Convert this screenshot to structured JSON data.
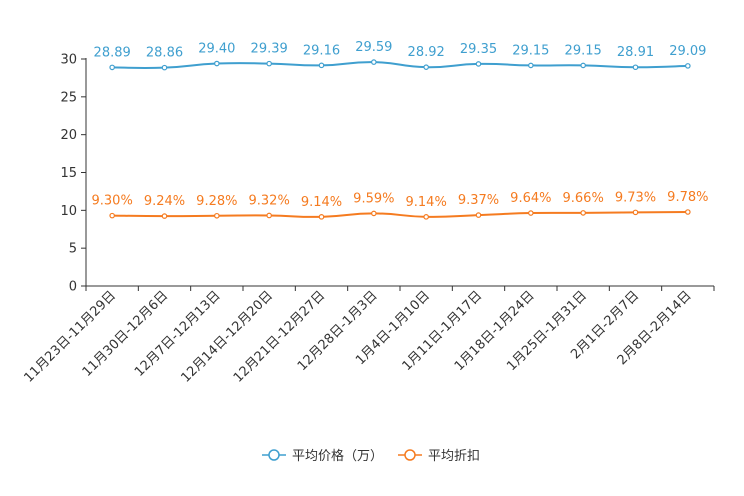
{
  "chart_data": {
    "type": "line",
    "title": "",
    "xlabel": "",
    "ylabel": "",
    "ylim": [
      0,
      30
    ],
    "yticks": [
      0,
      5,
      10,
      15,
      20,
      25,
      30
    ],
    "grid": false,
    "legend_position": "bottom-center",
    "categories": [
      "11月23日-11月29日",
      "11月30日-12月6日",
      "12月7日-12月13日",
      "12月14日-12月20日",
      "12月21日-12月27日",
      "12月28日-1月3日",
      "1月4日-1月10日",
      "1月11日-1月17日",
      "1月18日-1月24日",
      "1月25日-1月31日",
      "2月1日-2月7日",
      "2月8日-2月14日"
    ],
    "series": [
      {
        "name": "平均价格（万）",
        "color": "#3f9fcf",
        "values": [
          28.89,
          28.86,
          29.4,
          29.39,
          29.16,
          29.59,
          28.92,
          29.35,
          29.15,
          29.15,
          28.91,
          29.09
        ],
        "labels": [
          "28.89",
          "28.86",
          "29.40",
          "29.39",
          "29.16",
          "29.59",
          "28.92",
          "29.35",
          "29.15",
          "29.15",
          "28.91",
          "29.09"
        ]
      },
      {
        "name": "平均折扣",
        "color": "#f57b20",
        "values": [
          9.3,
          9.24,
          9.28,
          9.32,
          9.14,
          9.59,
          9.14,
          9.37,
          9.64,
          9.66,
          9.73,
          9.78
        ],
        "labels": [
          "9.30%",
          "9.24%",
          "9.28%",
          "9.32%",
          "9.14%",
          "9.59%",
          "9.14%",
          "9.37%",
          "9.64%",
          "9.66%",
          "9.73%",
          "9.78%"
        ]
      }
    ]
  }
}
